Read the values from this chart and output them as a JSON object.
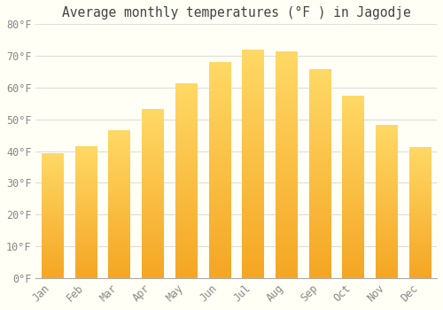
{
  "title": "Average monthly temperatures (°F ) in Jagodje",
  "months": [
    "Jan",
    "Feb",
    "Mar",
    "Apr",
    "May",
    "Jun",
    "Jul",
    "Aug",
    "Sep",
    "Oct",
    "Nov",
    "Dec"
  ],
  "values": [
    39.2,
    41.4,
    46.4,
    53.2,
    61.2,
    68.0,
    72.0,
    71.4,
    65.8,
    57.4,
    48.2,
    41.2
  ],
  "bar_color_bottom": "#F5A623",
  "bar_color_top": "#FFD966",
  "ylim": [
    0,
    80
  ],
  "yticks": [
    0,
    10,
    20,
    30,
    40,
    50,
    60,
    70,
    80
  ],
  "ytick_labels": [
    "0°F",
    "10°F",
    "20°F",
    "30°F",
    "40°F",
    "50°F",
    "60°F",
    "70°F",
    "80°F"
  ],
  "background_color": "#FFFFF5",
  "grid_color": "#dddddd",
  "title_fontsize": 10.5,
  "tick_fontsize": 8.5,
  "font_family": "monospace",
  "bar_width": 0.65
}
